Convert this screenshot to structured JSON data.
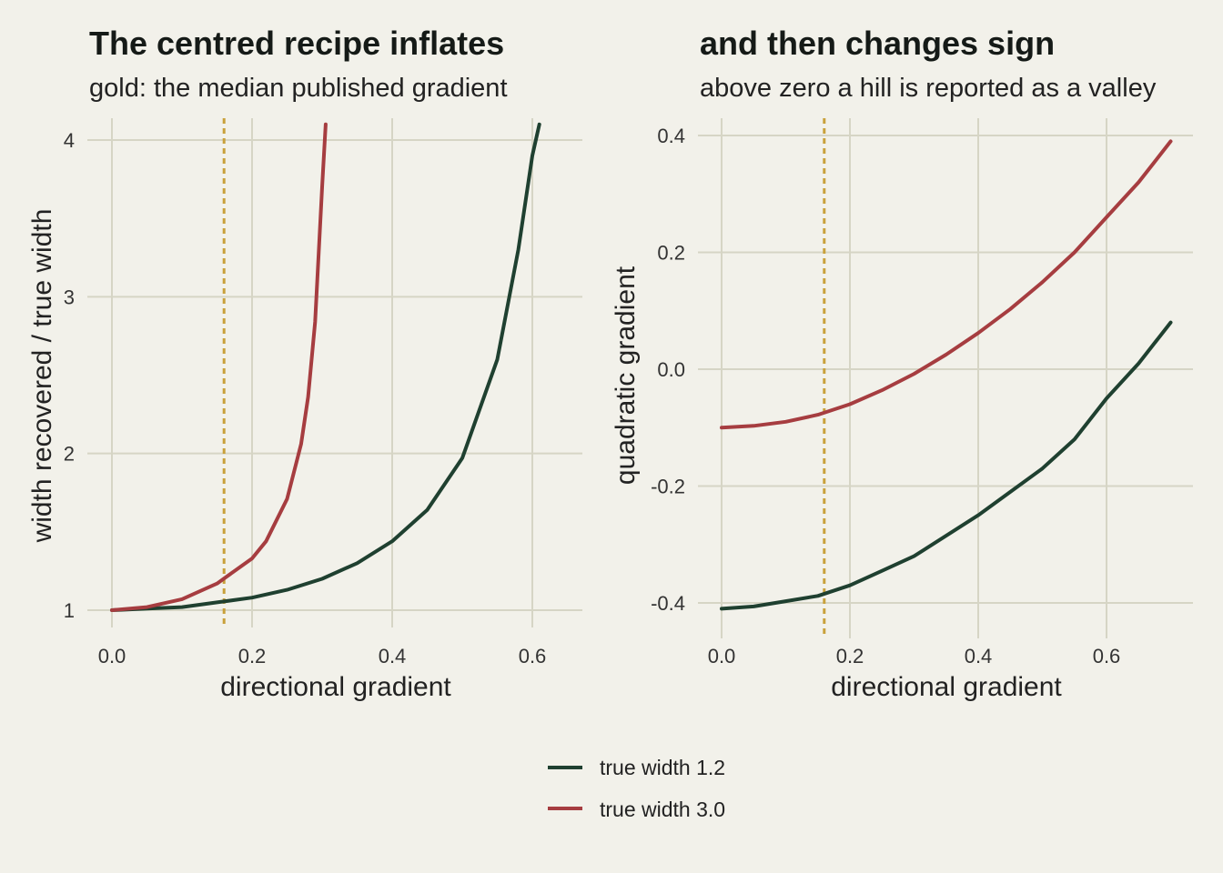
{
  "colors": {
    "background": "#f2f1ea",
    "grid": "#d6d5c5",
    "series_1": "#1f4030",
    "series_2": "#a63d40",
    "reference_line": "#c9a13b"
  },
  "legend": {
    "placement": "bottom",
    "items": [
      {
        "label": "true width 1.2",
        "color": "#1f4030"
      },
      {
        "label": "true width 3.0",
        "color": "#a63d40"
      }
    ]
  },
  "chart_data": [
    {
      "type": "line",
      "title": "The centred recipe inflates",
      "subtitle": "gold: the median published gradient",
      "xlabel": "directional gradient",
      "ylabel": "width recovered / true width",
      "xlim": [
        0,
        0.65
      ],
      "ylim": [
        1,
        4.1
      ],
      "xticks": [
        0.0,
        0.2,
        0.4,
        0.6
      ],
      "xtick_labels": [
        "0.0",
        "0.2",
        "0.4",
        "0.6"
      ],
      "yticks": [
        1,
        2,
        3,
        4
      ],
      "ytick_labels": [
        "1",
        "2",
        "3",
        "4"
      ],
      "grid": true,
      "reference_x": 0.16,
      "series": [
        {
          "name": "true width 1.2",
          "color": "#1f4030",
          "x": [
            0,
            0.05,
            0.1,
            0.15,
            0.2,
            0.25,
            0.3,
            0.35,
            0.4,
            0.45,
            0.5,
            0.55,
            0.58,
            0.6,
            0.61
          ],
          "y": [
            1.0,
            1.01,
            1.02,
            1.05,
            1.08,
            1.13,
            1.2,
            1.3,
            1.44,
            1.64,
            1.97,
            2.6,
            3.3,
            3.9,
            4.15
          ]
        },
        {
          "name": "true width 3.0",
          "color": "#a63d40",
          "x": [
            0,
            0.05,
            0.1,
            0.15,
            0.2,
            0.22,
            0.25,
            0.27,
            0.28,
            0.29,
            0.3,
            0.305
          ],
          "y": [
            1.0,
            1.02,
            1.07,
            1.17,
            1.33,
            1.44,
            1.71,
            2.06,
            2.36,
            2.84,
            3.7,
            4.15
          ]
        }
      ]
    },
    {
      "type": "line",
      "title": "and then changes sign",
      "subtitle": "above zero a hill is reported as a valley",
      "xlabel": "directional gradient",
      "ylabel": "quadratic gradient",
      "xlim": [
        0,
        0.73
      ],
      "ylim": [
        -0.46,
        0.43
      ],
      "xticks": [
        0.0,
        0.2,
        0.4,
        0.6
      ],
      "xtick_labels": [
        "0.0",
        "0.2",
        "0.4",
        "0.6"
      ],
      "yticks": [
        -0.4,
        -0.2,
        0.0,
        0.2,
        0.4
      ],
      "ytick_labels": [
        "-0.4",
        "-0.2",
        "0.0",
        "0.2",
        "0.4"
      ],
      "grid": true,
      "reference_x": 0.16,
      "series": [
        {
          "name": "true width 1.2",
          "color": "#1f4030",
          "x": [
            0,
            0.05,
            0.1,
            0.15,
            0.2,
            0.25,
            0.3,
            0.35,
            0.4,
            0.45,
            0.5,
            0.55,
            0.6,
            0.65,
            0.7
          ],
          "y": [
            -0.41,
            -0.406,
            -0.397,
            -0.388,
            -0.37,
            -0.345,
            -0.32,
            -0.285,
            -0.25,
            -0.21,
            -0.17,
            -0.12,
            -0.05,
            0.01,
            0.08
          ]
        },
        {
          "name": "true width 3.0",
          "color": "#a63d40",
          "x": [
            0,
            0.05,
            0.1,
            0.15,
            0.2,
            0.25,
            0.3,
            0.35,
            0.4,
            0.45,
            0.5,
            0.55,
            0.6,
            0.65,
            0.7
          ],
          "y": [
            -0.1,
            -0.097,
            -0.09,
            -0.078,
            -0.06,
            -0.036,
            -0.008,
            0.025,
            0.062,
            0.103,
            0.149,
            0.2,
            0.26,
            0.32,
            0.39
          ]
        }
      ]
    }
  ]
}
